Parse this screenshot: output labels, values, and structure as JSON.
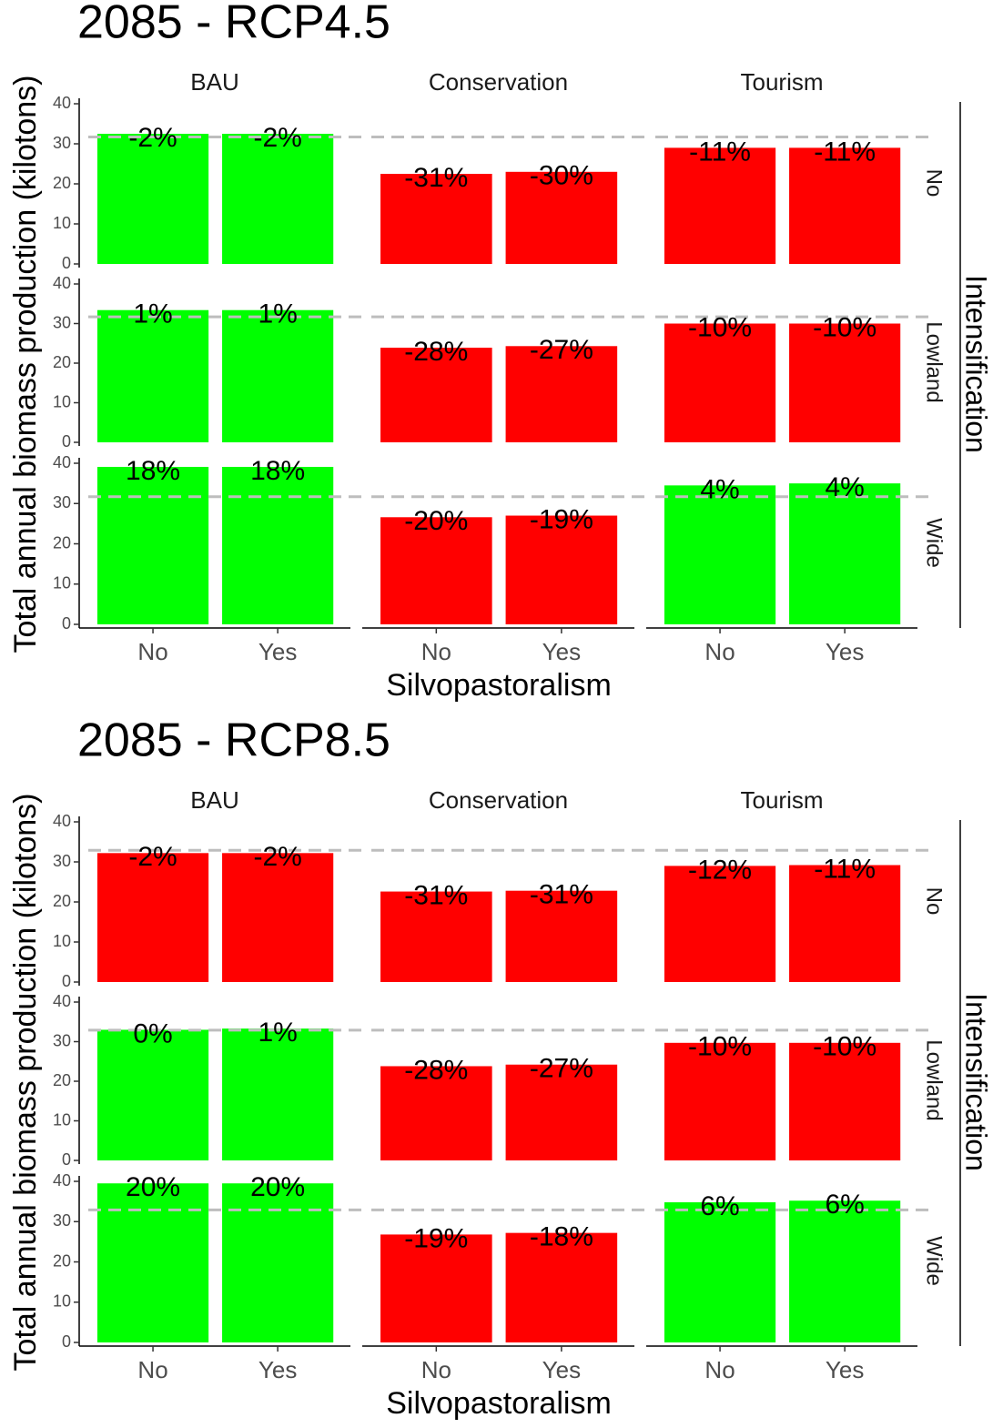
{
  "chart_data": [
    {
      "type": "bar",
      "title": "2085 - RCP4.5",
      "ylabel": "Total annual biomass production (kilotons)",
      "xlabel": "Silvopastoralism",
      "columns": [
        "BAU",
        "Conservation",
        "Tourism"
      ],
      "rows_label": "Intensification",
      "rows": [
        "No",
        "Lowland",
        "Wide"
      ],
      "categories": [
        "No",
        "Yes"
      ],
      "ylim": [
        0,
        40
      ],
      "yticks": [
        0,
        10,
        20,
        30,
        40
      ],
      "reference": 31.7,
      "panels": [
        {
          "values": [
            32.5,
            32.5
          ],
          "labels": [
            "-2%",
            "-2%"
          ],
          "colors": [
            "#00ff00",
            "#00ff00"
          ]
        },
        {
          "values": [
            22.5,
            23
          ],
          "labels": [
            "-31%",
            "-30%"
          ],
          "colors": [
            "#ff0000",
            "#ff0000"
          ]
        },
        {
          "values": [
            29,
            29
          ],
          "labels": [
            "-11%",
            "-11%"
          ],
          "colors": [
            "#ff0000",
            "#ff0000"
          ]
        },
        {
          "values": [
            33.4,
            33.4
          ],
          "labels": [
            "1%",
            "1%"
          ],
          "colors": [
            "#00ff00",
            "#00ff00"
          ]
        },
        {
          "values": [
            23.9,
            24.3
          ],
          "labels": [
            "-28%",
            "-27%"
          ],
          "colors": [
            "#ff0000",
            "#ff0000"
          ]
        },
        {
          "values": [
            30,
            30
          ],
          "labels": [
            "-10%",
            "-10%"
          ],
          "colors": [
            "#ff0000",
            "#ff0000"
          ]
        },
        {
          "values": [
            39.1,
            39.1
          ],
          "labels": [
            "18%",
            "18%"
          ],
          "colors": [
            "#00ff00",
            "#00ff00"
          ]
        },
        {
          "values": [
            26.6,
            27
          ],
          "labels": [
            "-20%",
            "-19%"
          ],
          "colors": [
            "#ff0000",
            "#ff0000"
          ]
        },
        {
          "values": [
            34.5,
            35
          ],
          "labels": [
            "4%",
            "4%"
          ],
          "colors": [
            "#00ff00",
            "#00ff00"
          ]
        }
      ]
    },
    {
      "type": "bar",
      "title": "2085 - RCP8.5",
      "ylabel": "Total annual biomass production (kilotons)",
      "xlabel": "Silvopastoralism",
      "columns": [
        "BAU",
        "Conservation",
        "Tourism"
      ],
      "rows_label": "Intensification",
      "rows": [
        "No",
        "Lowland",
        "Wide"
      ],
      "categories": [
        "No",
        "Yes"
      ],
      "ylim": [
        0,
        40
      ],
      "yticks": [
        0,
        10,
        20,
        30,
        40
      ],
      "reference": 32.9,
      "panels": [
        {
          "values": [
            32.2,
            32.2
          ],
          "labels": [
            "-2%",
            "-2%"
          ],
          "colors": [
            "#ff0000",
            "#ff0000"
          ]
        },
        {
          "values": [
            22.6,
            22.8
          ],
          "labels": [
            "-31%",
            "-31%"
          ],
          "colors": [
            "#ff0000",
            "#ff0000"
          ]
        },
        {
          "values": [
            29,
            29.2
          ],
          "labels": [
            "-12%",
            "-11%"
          ],
          "colors": [
            "#ff0000",
            "#ff0000"
          ]
        },
        {
          "values": [
            33,
            33.3
          ],
          "labels": [
            "0%",
            "1%"
          ],
          "colors": [
            "#00ff00",
            "#00ff00"
          ]
        },
        {
          "values": [
            23.8,
            24.2
          ],
          "labels": [
            "-28%",
            "-27%"
          ],
          "colors": [
            "#ff0000",
            "#ff0000"
          ]
        },
        {
          "values": [
            29.7,
            29.7
          ],
          "labels": [
            "-10%",
            "-10%"
          ],
          "colors": [
            "#ff0000",
            "#ff0000"
          ]
        },
        {
          "values": [
            39.5,
            39.5
          ],
          "labels": [
            "20%",
            "20%"
          ],
          "colors": [
            "#00ff00",
            "#00ff00"
          ]
        },
        {
          "values": [
            26.8,
            27.2
          ],
          "labels": [
            "-19%",
            "-18%"
          ],
          "colors": [
            "#ff0000",
            "#ff0000"
          ]
        },
        {
          "values": [
            34.8,
            35.2
          ],
          "labels": [
            "6%",
            "6%"
          ],
          "colors": [
            "#00ff00",
            "#00ff00"
          ]
        }
      ]
    }
  ]
}
